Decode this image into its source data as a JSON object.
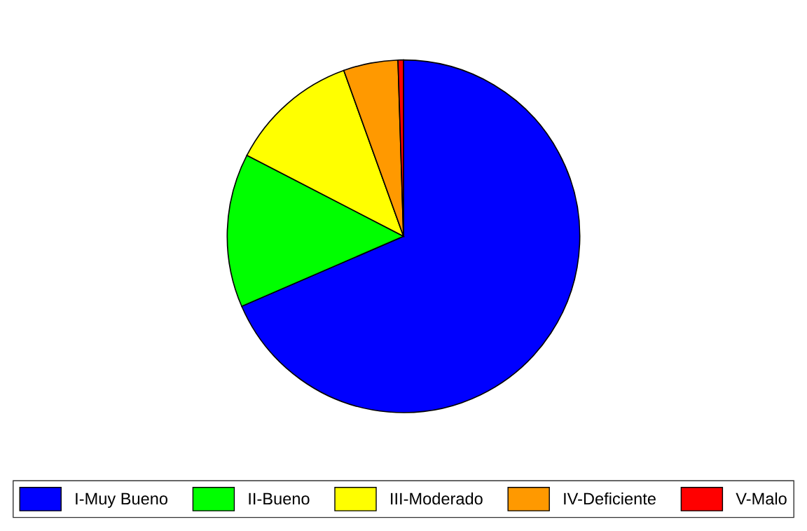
{
  "chart_data": {
    "type": "pie",
    "categories": [
      "I-Muy Bueno",
      "II-Bueno",
      "III-Moderado",
      "IV-Deficiente",
      "V-Malo"
    ],
    "values": [
      68.5,
      14.1,
      11.9,
      5.0,
      0.5
    ],
    "colors": [
      "#0000ff",
      "#00ff00",
      "#ffff00",
      "#ff9900",
      "#ff0000"
    ],
    "legend": "bottom"
  }
}
